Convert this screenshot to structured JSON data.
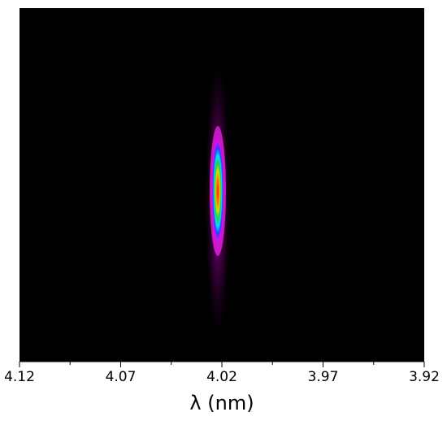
{
  "chart_data": {
    "type": "image",
    "xlabel": "λ (nm)",
    "xlim": [
      4.12,
      3.92
    ],
    "xticks": [
      4.12,
      4.07,
      4.02,
      3.97,
      3.92
    ],
    "xminorticks": [
      4.095,
      4.045,
      3.995,
      3.945
    ],
    "x": [
      4.022
    ],
    "background": "#000000"
  }
}
